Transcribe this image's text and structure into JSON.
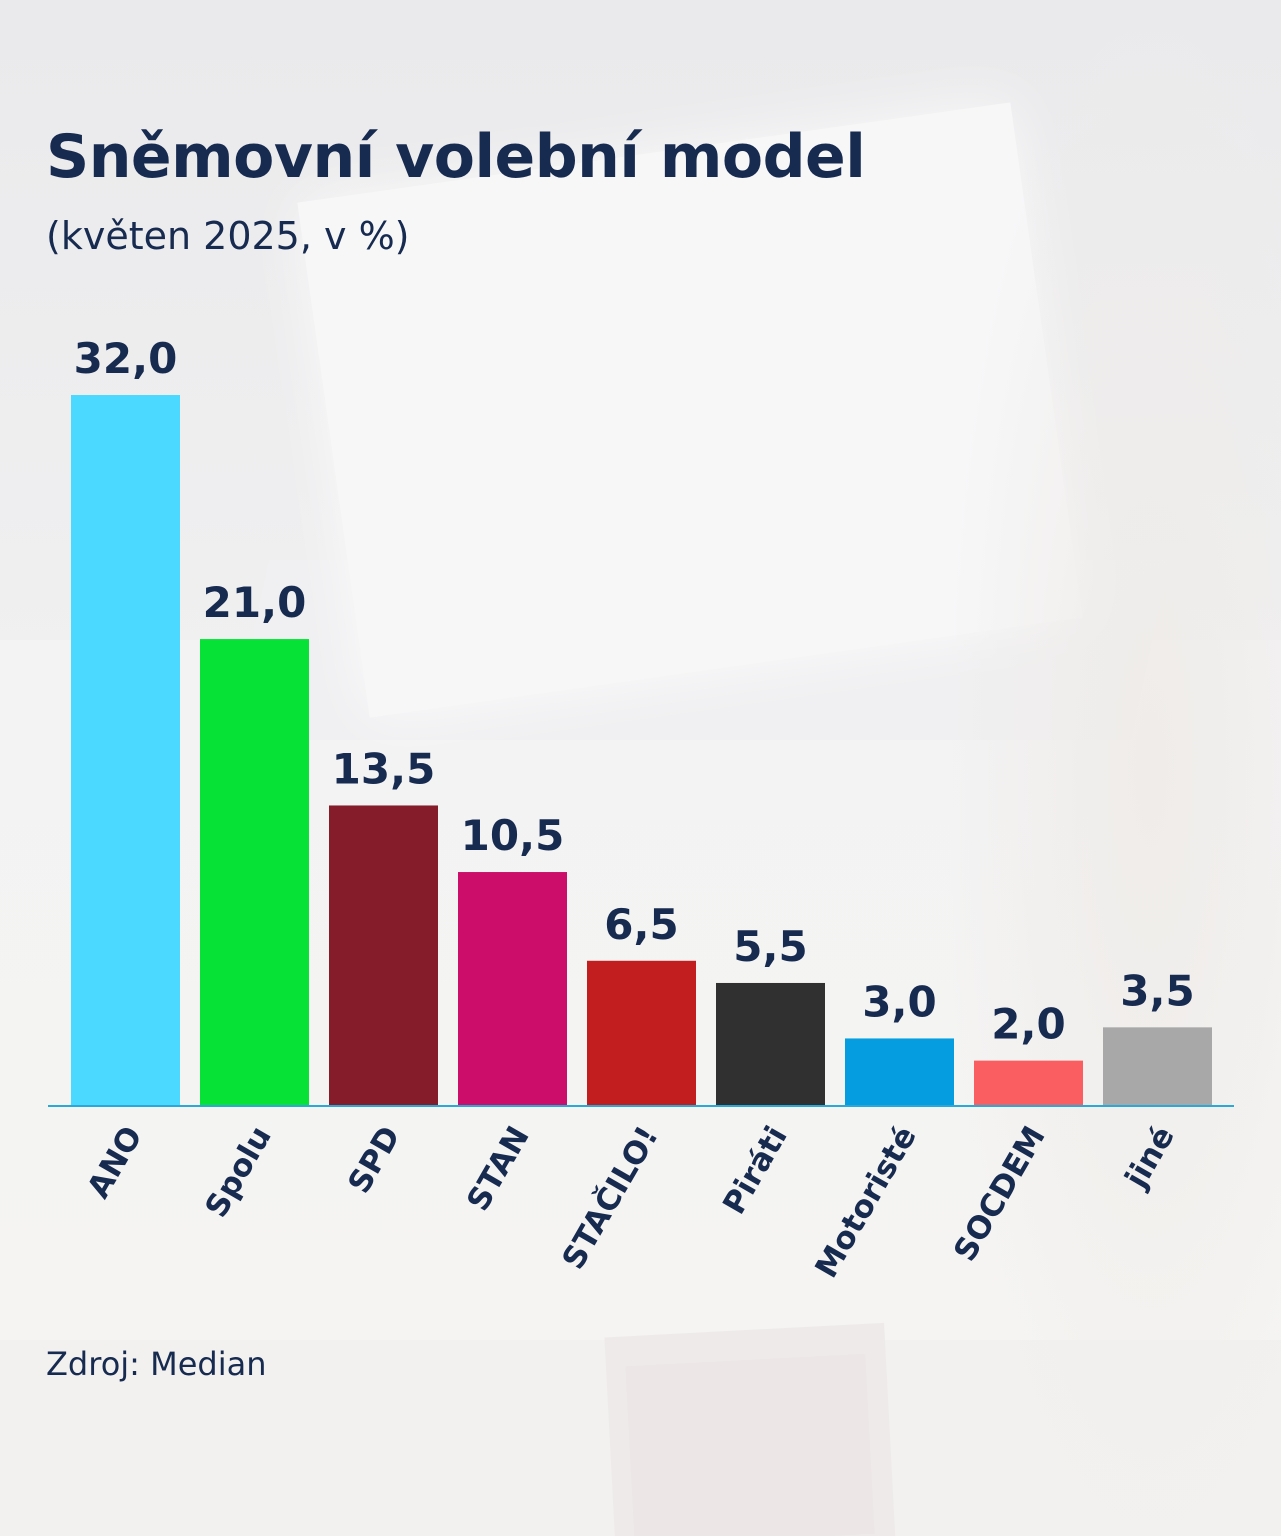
{
  "chart_data": {
    "type": "bar",
    "title": "Sněmovní volební model",
    "subtitle": "(květen 2025, v %)",
    "categories": [
      "ANO",
      "Spolu",
      "SPD",
      "STAN",
      "STAČILO!",
      "Piráti",
      "Motoristé",
      "SOCDEM",
      "jiné"
    ],
    "values": [
      32.0,
      21.0,
      13.5,
      10.5,
      6.5,
      5.5,
      3.0,
      2.0,
      3.5
    ],
    "value_labels": [
      "32,0",
      "21,0",
      "13,5",
      "10,5",
      "6,5",
      "5,5",
      "3,0",
      "2,0",
      "3,5"
    ],
    "colors": [
      "#4cd9ff",
      "#06e236",
      "#841c2a",
      "#cc0e6a",
      "#c21d1f",
      "#303030",
      "#059de0",
      "#fb5e61",
      "#a8a8a8"
    ],
    "axis_color": "#2aa8d8",
    "ylim": [
      0,
      32
    ],
    "grid": false,
    "legend": "none",
    "source": "Zdroj: Median"
  }
}
